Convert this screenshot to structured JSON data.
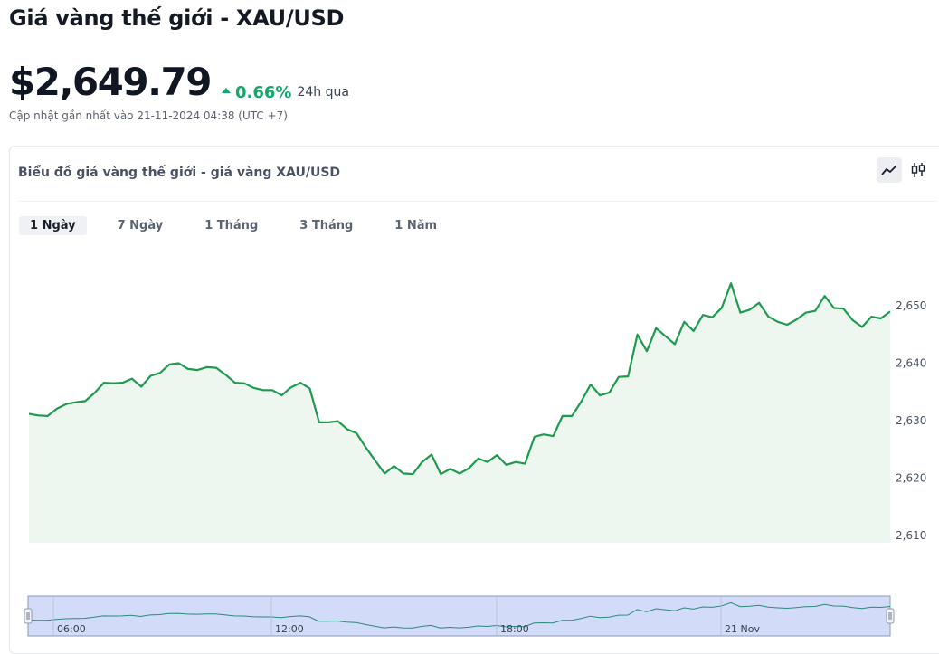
{
  "header": {
    "title": "Giá vàng thế giới - XAU/USD",
    "price": "$2,649.79",
    "change": "0.66%",
    "change_label": "24h qua",
    "updated": "Cập nhật gần nhất vào 21-11-2024 04:38 (UTC +7)"
  },
  "card": {
    "title": "Biểu đồ giá vàng thế giới - giá vàng XAU/USD",
    "chart_types": [
      "line-chart-icon",
      "candlestick-icon"
    ]
  },
  "tabs": [
    {
      "label": "1 Ngày",
      "active": true
    },
    {
      "label": "7 Ngày",
      "active": false
    },
    {
      "label": "1 Tháng",
      "active": false
    },
    {
      "label": "3 Tháng",
      "active": false
    },
    {
      "label": "1 Năm",
      "active": false
    }
  ],
  "colors": {
    "line": "#1f9a4f",
    "fill": "#edf7f0",
    "navigator_fill": "#d2dbf7",
    "navigator_border": "#8d97b5",
    "up": "#14a96b"
  },
  "chart_data": {
    "type": "area",
    "ylim": [
      2610,
      2655
    ],
    "yticks": [
      2610,
      2620,
      2630,
      2640,
      2650
    ],
    "ytick_labels": [
      "2,610",
      "2,620",
      "2,630",
      "2,640",
      "2,650"
    ],
    "x_labels": [
      "06:00",
      "12:00",
      "18:00",
      "21 Nov"
    ],
    "grid": false,
    "legend": "none",
    "values": [
      2631.2,
      2630.9,
      2630.8,
      2632.1,
      2632.9,
      2633.2,
      2633.4,
      2634.8,
      2636.6,
      2636.5,
      2636.6,
      2637.3,
      2635.9,
      2637.8,
      2638.3,
      2639.8,
      2640.0,
      2639.0,
      2638.8,
      2639.3,
      2639.2,
      2638.0,
      2636.6,
      2636.5,
      2635.7,
      2635.3,
      2635.3,
      2634.4,
      2635.8,
      2636.6,
      2635.6,
      2629.7,
      2629.7,
      2629.9,
      2628.5,
      2627.8,
      2625.3,
      2623.0,
      2620.8,
      2622.1,
      2620.8,
      2620.7,
      2622.8,
      2624.1,
      2620.7,
      2621.6,
      2620.8,
      2621.7,
      2623.4,
      2622.8,
      2624.0,
      2622.3,
      2622.8,
      2622.5,
      2627.2,
      2627.6,
      2627.3,
      2630.8,
      2630.8,
      2633.3,
      2636.3,
      2634.4,
      2634.9,
      2637.6,
      2637.7,
      2645.0,
      2642.1,
      2646.1,
      2644.7,
      2643.3,
      2647.2,
      2645.6,
      2648.4,
      2648.0,
      2649.6,
      2653.9,
      2648.8,
      2649.3,
      2650.5,
      2648.1,
      2647.2,
      2646.7,
      2647.6,
      2648.8,
      2649.1,
      2651.7,
      2649.6,
      2649.5,
      2647.5,
      2646.3,
      2648.1,
      2647.8,
      2649.0
    ]
  }
}
